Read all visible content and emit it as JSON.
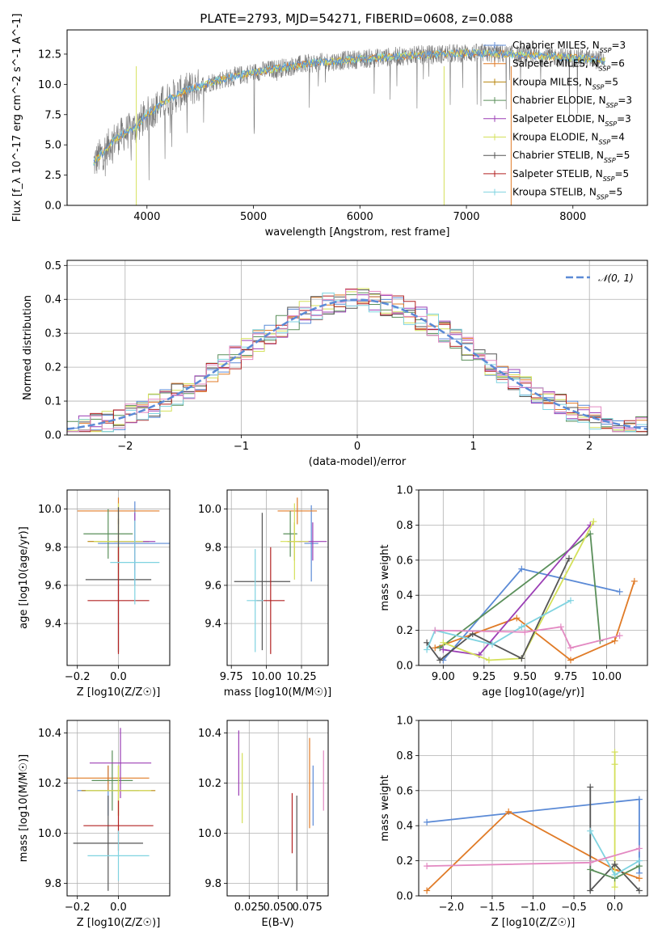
{
  "figure": {
    "title": "PLATE=2793, MJD=54271, FIBERID=0608, z=0.088"
  },
  "colors": {
    "series": [
      "#5b8ad6",
      "#e07b27",
      "#b8860b",
      "#5a8f5a",
      "#9b3fb5",
      "#d4e05a",
      "#555555",
      "#b22222",
      "#7fd3e0"
    ],
    "gauss": "#5b8ad6",
    "grid": "#b0b0b0"
  },
  "chart_data": [
    {
      "type": "line",
      "name": "spectrum",
      "xlabel": "wavelength [Angstrom, rest frame]",
      "ylabel": "Flux [f_λ 10^-17 erg cm^-2 s^-1 A^-1]",
      "xlim": [
        3250,
        8700
      ],
      "ylim": [
        0,
        14.5
      ],
      "xticks": [
        4000,
        5000,
        6000,
        7000,
        8000
      ],
      "yticks": [
        0.0,
        2.5,
        5.0,
        7.5,
        10.0,
        12.5
      ],
      "ytick_labels": [
        "0.0",
        "2.5",
        "5.0",
        "7.5",
        "10.0",
        "12.5"
      ],
      "legend": [
        "Chabrier MILES, N_SSP=3",
        "Salpeter MILES, N_SSP=6",
        "Kroupa MILES, N_SSP=5",
        "Chabrier ELODIE, N_SSP=3",
        "Salpeter ELODIE, N_SSP=3",
        "Kroupa ELODIE, N_SSP=4",
        "Chabrier STELIB, N_SSP=5",
        "Salpeter STELIB, N_SSP=5",
        "Kroupa STELIB, N_SSP=5"
      ],
      "continuum": {
        "x": [
          3500,
          3700,
          3900,
          4000,
          4200,
          4400,
          4600,
          4800,
          5000,
          5500,
          6000,
          6500,
          7000,
          7400,
          7600,
          8000,
          8300
        ],
        "y": [
          3.5,
          5.5,
          6.5,
          7.5,
          8.8,
          9.6,
          10.2,
          10.6,
          11.0,
          11.7,
          12.1,
          12.4,
          12.6,
          12.5,
          12.4,
          12.2,
          12.0
        ]
      }
    },
    {
      "type": "bar",
      "name": "residual histogram",
      "xlabel": "(data-model)/error",
      "ylabel": "Normed distribution",
      "xlim": [
        -2.5,
        2.5
      ],
      "ylim": [
        0,
        0.515
      ],
      "xticks": [
        -2,
        -1,
        0,
        1,
        2
      ],
      "xtick_labels": [
        "−2",
        "−1",
        "0",
        "1",
        "2"
      ],
      "yticks": [
        0.0,
        0.1,
        0.2,
        0.3,
        0.4,
        0.5
      ],
      "legend": [
        "N(0,1)"
      ],
      "bin_width": 0.1,
      "bins_start": -2.5
    },
    {
      "type": "scatter",
      "name": "age vs Z",
      "xlabel": "Z [log10(Z/Z☉)]",
      "ylabel": "age  [log10(age/yr)]",
      "xlim": [
        -0.25,
        0.25
      ],
      "ylim": [
        9.18,
        10.1
      ],
      "xticks": [
        -0.2,
        0.0
      ],
      "xtick_labels": [
        "−0.2",
        "0.0"
      ],
      "yticks": [
        9.4,
        9.6,
        9.8,
        10.0
      ],
      "points": [
        {
          "x": 0.08,
          "y": 9.82,
          "xerr": 0.18,
          "yerr": 0.22,
          "c": 0
        },
        {
          "x": 0.0,
          "y": 9.99,
          "xerr": 0.2,
          "yerr": 0.07,
          "c": 1
        },
        {
          "x": 0.0,
          "y": 9.83,
          "xerr": 0.15,
          "yerr": 0.12,
          "c": 2
        },
        {
          "x": -0.05,
          "y": 9.87,
          "xerr": 0.12,
          "yerr": 0.13,
          "c": 3
        },
        {
          "x": 0.08,
          "y": 9.83,
          "xerr": 0.1,
          "yerr": 0.15,
          "c": 4
        },
        {
          "x": 0.0,
          "y": 9.83,
          "xerr": 0.12,
          "yerr": 0.2,
          "c": 5
        },
        {
          "x": 0.0,
          "y": 9.63,
          "xerr": 0.16,
          "yerr": 0.38,
          "c": 6
        },
        {
          "x": 0.0,
          "y": 9.52,
          "xerr": 0.15,
          "yerr": 0.28,
          "c": 7
        },
        {
          "x": 0.08,
          "y": 9.72,
          "xerr": 0.12,
          "yerr": 0.22,
          "c": 8
        }
      ]
    },
    {
      "type": "scatter",
      "name": "age vs mass",
      "xlabel": "mass [log10(M/M☉)]",
      "ylabel": "",
      "xlim": [
        9.72,
        10.44
      ],
      "ylim": [
        9.18,
        10.1
      ],
      "xticks": [
        9.75,
        10.0,
        10.25
      ],
      "xtick_labels": [
        "9.75",
        "10.00",
        "10.25"
      ],
      "yticks": [
        9.4,
        9.6,
        9.8,
        10.0
      ],
      "points": [
        {
          "x": 10.32,
          "y": 9.82,
          "xerr": 0.05,
          "yerr": 0.2,
          "c": 0
        },
        {
          "x": 10.22,
          "y": 9.99,
          "xerr": 0.14,
          "yerr": 0.07,
          "c": 1
        },
        {
          "x": 10.2,
          "y": 9.83,
          "xerr": 0.05,
          "yerr": 0.1,
          "c": 2
        },
        {
          "x": 10.17,
          "y": 9.87,
          "xerr": 0.05,
          "yerr": 0.12,
          "c": 3
        },
        {
          "x": 10.33,
          "y": 9.83,
          "xerr": 0.1,
          "yerr": 0.1,
          "c": 4
        },
        {
          "x": 10.2,
          "y": 9.83,
          "xerr": 0.1,
          "yerr": 0.2,
          "c": 5
        },
        {
          "x": 9.97,
          "y": 9.62,
          "xerr": 0.2,
          "yerr": 0.36,
          "c": 6
        },
        {
          "x": 10.03,
          "y": 9.52,
          "xerr": 0.1,
          "yerr": 0.28,
          "c": 7
        },
        {
          "x": 9.92,
          "y": 9.52,
          "xerr": 0.06,
          "yerr": 0.27,
          "c": 8
        }
      ]
    },
    {
      "type": "line",
      "name": "mass weight vs age",
      "xlabel": "age  [log10(age/yr)]",
      "ylabel": "mass weight",
      "xlim": [
        8.85,
        10.25
      ],
      "ylim": [
        0,
        1.0
      ],
      "xticks": [
        9.0,
        9.25,
        9.5,
        9.75,
        10.0
      ],
      "xtick_labels": [
        "9.00",
        "9.25",
        "9.50",
        "9.75",
        "10.00"
      ],
      "yticks": [
        0.0,
        0.2,
        0.4,
        0.6,
        0.8,
        1.0
      ],
      "series": [
        {
          "c": 0,
          "x": [
            9.0,
            9.48,
            10.08
          ],
          "y": [
            0.03,
            0.55,
            0.42
          ]
        },
        {
          "c": 1,
          "x": [
            8.95,
            9.45,
            9.78,
            10.05,
            10.17
          ],
          "y": [
            0.1,
            0.27,
            0.03,
            0.14,
            0.48
          ]
        },
        {
          "c": 3,
          "x": [
            8.98,
            9.9,
            9.96
          ],
          "y": [
            0.1,
            0.75,
            0.14
          ]
        },
        {
          "c": 4,
          "x": [
            9.0,
            9.22,
            9.9
          ],
          "y": [
            0.09,
            0.06,
            0.8
          ]
        },
        {
          "c": 5,
          "x": [
            9.0,
            9.28,
            9.48,
            9.92
          ],
          "y": [
            0.13,
            0.03,
            0.04,
            0.82
          ]
        },
        {
          "c": 6,
          "x": [
            8.9,
            8.98,
            9.18,
            9.48,
            9.77
          ],
          "y": [
            0.13,
            0.03,
            0.18,
            0.04,
            0.61
          ]
        },
        {
          "c": 8,
          "x": [
            8.9,
            8.95,
            9.3,
            9.48,
            9.78
          ],
          "y": [
            0.09,
            0.2,
            0.12,
            0.22,
            0.37
          ]
        },
        {
          "c": 9,
          "x": [
            8.95,
            9.5,
            9.72,
            9.78,
            10.08
          ],
          "y": [
            0.2,
            0.19,
            0.22,
            0.1,
            0.17
          ]
        }
      ]
    },
    {
      "type": "scatter",
      "name": "mass vs Z",
      "xlabel": "Z [log10(Z/Z☉)]",
      "ylabel": "mass [log10(M/M☉)]",
      "xlim": [
        -0.25,
        0.25
      ],
      "ylim": [
        9.75,
        10.45
      ],
      "xticks": [
        -0.2,
        0.0
      ],
      "xtick_labels": [
        "−0.2",
        "0.0"
      ],
      "yticks": [
        9.8,
        10.0,
        10.2,
        10.4
      ],
      "points": [
        {
          "x": -0.05,
          "y": 10.17,
          "xerr": 0.15,
          "yerr": 0.1,
          "c": 0
        },
        {
          "x": -0.05,
          "y": 10.22,
          "xerr": 0.2,
          "yerr": 0.05,
          "c": 1
        },
        {
          "x": 0.0,
          "y": 10.17,
          "xerr": 0.18,
          "yerr": 0.1,
          "c": 2
        },
        {
          "x": -0.03,
          "y": 10.21,
          "xerr": 0.1,
          "yerr": 0.12,
          "c": 3
        },
        {
          "x": 0.01,
          "y": 10.28,
          "xerr": 0.15,
          "yerr": 0.14,
          "c": 4
        },
        {
          "x": 0.0,
          "y": 10.17,
          "xerr": 0.16,
          "yerr": 0.1,
          "c": 5
        },
        {
          "x": -0.05,
          "y": 9.96,
          "xerr": 0.17,
          "yerr": 0.19,
          "c": 6
        },
        {
          "x": 0.0,
          "y": 10.03,
          "xerr": 0.17,
          "yerr": 0.1,
          "c": 7
        },
        {
          "x": 0.0,
          "y": 9.91,
          "xerr": 0.15,
          "yerr": 0.1,
          "c": 8
        }
      ]
    },
    {
      "type": "scatter",
      "name": "mass vs E(B-V)",
      "xlabel": "E(B-V)",
      "ylabel": "",
      "xlim": [
        0.006,
        0.093
      ],
      "ylim": [
        9.75,
        10.45
      ],
      "xticks": [
        0.025,
        0.05,
        0.075
      ],
      "xtick_labels": [
        "0.025",
        "0.050",
        "0.075"
      ],
      "yticks": [
        9.8,
        10.0,
        10.2,
        10.4
      ],
      "points": [
        {
          "x": 0.016,
          "y": 10.28,
          "yerr": 0.13,
          "c": 4
        },
        {
          "x": 0.019,
          "y": 10.18,
          "yerr": 0.14,
          "c": 5
        },
        {
          "x": 0.062,
          "y": 10.04,
          "yerr": 0.12,
          "c": 7
        },
        {
          "x": 0.066,
          "y": 9.96,
          "yerr": 0.19,
          "c": 6
        },
        {
          "x": 0.077,
          "y": 10.2,
          "yerr": 0.18,
          "c": 1
        },
        {
          "x": 0.08,
          "y": 10.15,
          "yerr": 0.12,
          "c": 0
        },
        {
          "x": 0.089,
          "y": 10.21,
          "yerr": 0.12,
          "c": 9
        }
      ]
    },
    {
      "type": "line",
      "name": "mass weight vs Z",
      "xlabel": "Z [log10(Z/Z☉)]",
      "ylabel": "mass weight",
      "xlim": [
        -2.4,
        0.4
      ],
      "ylim": [
        0,
        1.0
      ],
      "xticks": [
        -2.0,
        -1.5,
        -1.0,
        -0.5,
        0.0
      ],
      "xtick_labels": [
        "−2.0",
        "−1.5",
        "−1.0",
        "−0.5",
        "0.0"
      ],
      "yticks": [
        0.0,
        0.2,
        0.4,
        0.6,
        0.8,
        1.0
      ],
      "series": [
        {
          "c": 0,
          "x": [
            -2.3,
            0.3,
            0.3
          ],
          "y": [
            0.42,
            0.55,
            0.13
          ]
        },
        {
          "c": 1,
          "x": [
            -2.3,
            -1.3,
            0.0,
            0.3
          ],
          "y": [
            0.03,
            0.48,
            0.15,
            0.1
          ]
        },
        {
          "c": 5,
          "x": [
            0.0,
            0.0,
            0.0
          ],
          "y": [
            0.82,
            0.05,
            0.75
          ]
        },
        {
          "c": 6,
          "x": [
            -0.3,
            -0.3,
            0.0,
            0.3
          ],
          "y": [
            0.62,
            0.03,
            0.18,
            0.03
          ]
        },
        {
          "c": 3,
          "x": [
            -0.3,
            0.0,
            0.3
          ],
          "y": [
            0.15,
            0.1,
            0.17
          ]
        },
        {
          "c": 8,
          "x": [
            -0.3,
            0.0,
            0.3
          ],
          "y": [
            0.37,
            0.12,
            0.2
          ]
        },
        {
          "c": 9,
          "x": [
            -2.3,
            -0.3,
            0.3
          ],
          "y": [
            0.17,
            0.19,
            0.27
          ]
        }
      ]
    }
  ]
}
